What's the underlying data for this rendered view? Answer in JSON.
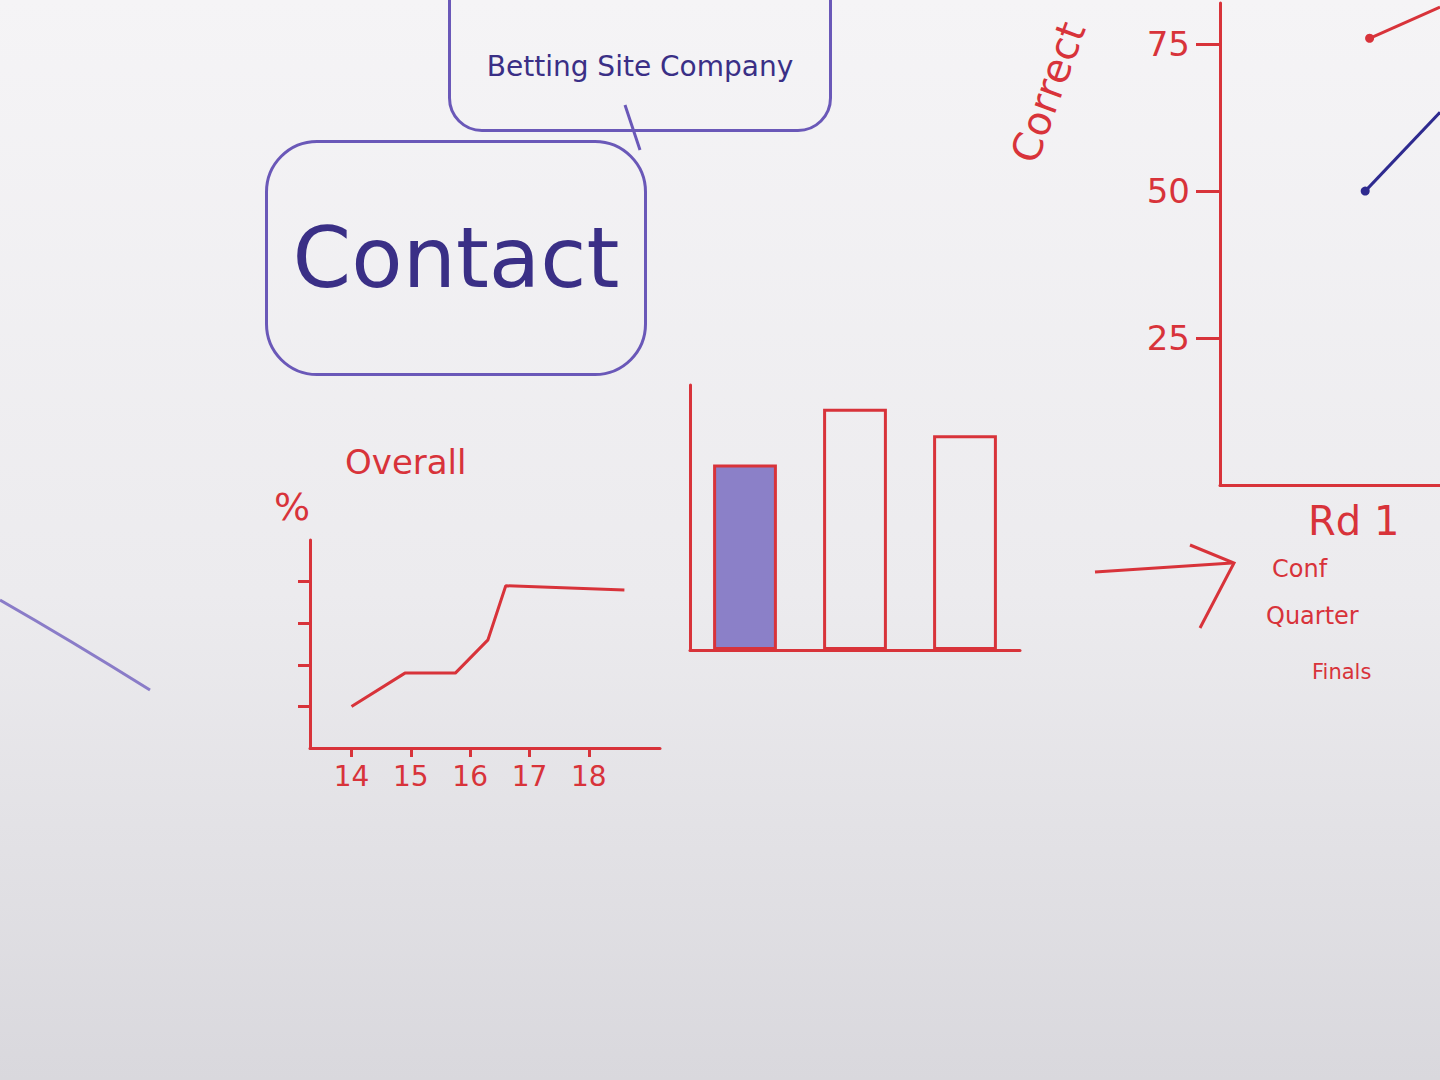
{
  "boxes": [
    {
      "text": "Betting Site Company"
    },
    {
      "text": "Contact"
    }
  ],
  "chart_data": [
    {
      "type": "line",
      "title": "Overall",
      "y_label": "%",
      "x": [
        14,
        14.9,
        15.75,
        16.3,
        16.6,
        18.6
      ],
      "values": [
        1,
        1.8,
        1.8,
        2.6,
        3.9,
        3.8
      ],
      "color": "#d8333a",
      "xlim": [
        13.3,
        19.2
      ],
      "xticks": [
        14,
        15,
        16,
        17,
        18
      ],
      "ylim": [
        0,
        5
      ],
      "yticks": [
        1,
        2,
        3,
        4
      ],
      "tick_labels": "x",
      "grid": false
    },
    {
      "type": "bar",
      "categories": [
        null,
        null,
        null
      ],
      "values": [
        7,
        9.1,
        8.1
      ],
      "color": "#d8333a",
      "colors": [
        "#8b80c8",
        "transparent",
        "transparent"
      ],
      "ylim": [
        0,
        10
      ],
      "yticks": [],
      "tick_labels": false,
      "grid": false,
      "annotations": [
        "Rd 1",
        "Conf",
        "Quarter",
        "Finals"
      ]
    },
    {
      "type": "line",
      "y_label": "Correct",
      "series": [
        {
          "color": "#d8333a",
          "marker": "circle",
          "x": [
            0.68,
            1
          ],
          "values": [
            76,
            81.3
          ]
        },
        {
          "color": "#2e2a8f",
          "marker": "circle",
          "x": [
            0.66,
            1
          ],
          "values": [
            50,
            63.4
          ]
        }
      ],
      "xlim": [
        0,
        1
      ],
      "xticks": [],
      "ylim": [
        0,
        82
      ],
      "yticks": [
        25,
        50,
        75
      ],
      "tick_labels": "y",
      "grid": false
    }
  ]
}
